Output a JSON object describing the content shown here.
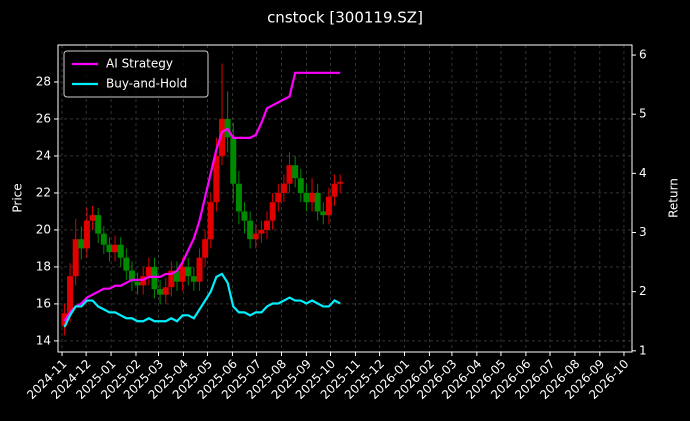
{
  "chart_data": {
    "type": "candlestick",
    "title": "cnstock [300119.SZ]",
    "ylabel": "Price",
    "y2label": "Return",
    "x": [
      "2024-11-04",
      "2024-11-11",
      "2024-11-18",
      "2024-11-25",
      "2024-12-02",
      "2024-12-09",
      "2024-12-16",
      "2024-12-23",
      "2024-12-30",
      "2025-01-06",
      "2025-01-13",
      "2025-01-20",
      "2025-01-27",
      "2025-02-03",
      "2025-02-10",
      "2025-02-17",
      "2025-02-24",
      "2025-03-03",
      "2025-03-10",
      "2025-03-17",
      "2025-03-24",
      "2025-03-31",
      "2025-04-07",
      "2025-04-14",
      "2025-04-21",
      "2025-04-28",
      "2025-05-05",
      "2025-05-12",
      "2025-05-19",
      "2025-05-26",
      "2025-06-02",
      "2025-06-09",
      "2025-06-16",
      "2025-06-23",
      "2025-06-30",
      "2025-07-07",
      "2025-07-14",
      "2025-07-21",
      "2025-07-28",
      "2025-08-04",
      "2025-08-11",
      "2025-08-18",
      "2025-08-25",
      "2025-09-01",
      "2025-09-08",
      "2025-09-15",
      "2025-09-22",
      "2025-09-29",
      "2025-10-06",
      "2025-10-13"
    ],
    "open": [
      14.8,
      15.5,
      17.5,
      19.5,
      19.0,
      20.5,
      20.8,
      19.8,
      19.2,
      18.8,
      19.2,
      18.5,
      17.8,
      17.2,
      17.0,
      17.5,
      18.0,
      16.8,
      16.5,
      16.9,
      17.8,
      17.2,
      18.0,
      17.5,
      17.2,
      18.5,
      19.5,
      21.5,
      24.0,
      26.0,
      25.0,
      22.5,
      21.0,
      20.5,
      19.5,
      19.8,
      20.0,
      20.5,
      21.5,
      22.0,
      22.5,
      23.5,
      22.8,
      22.0,
      21.5,
      22.0,
      21.0,
      20.8,
      21.8,
      22.5
    ],
    "high": [
      16.0,
      18.2,
      20.6,
      20.2,
      21.2,
      21.3,
      21.2,
      20.2,
      19.6,
      19.7,
      19.6,
      19.0,
      18.3,
      17.7,
      18.0,
      18.5,
      18.5,
      17.3,
      17.4,
      18.3,
      18.3,
      18.5,
      18.5,
      18.0,
      19.0,
      20.0,
      22.0,
      25.0,
      29.0,
      27.5,
      25.8,
      23.2,
      21.5,
      21.0,
      20.3,
      20.5,
      21.0,
      22.0,
      22.5,
      23.0,
      24.2,
      24.0,
      23.3,
      22.5,
      22.8,
      22.5,
      21.5,
      22.3,
      23.0,
      23.0
    ],
    "low": [
      14.3,
      15.0,
      17.0,
      18.4,
      18.5,
      20.0,
      19.3,
      18.7,
      18.3,
      18.3,
      18.0,
      17.3,
      16.7,
      16.5,
      16.5,
      17.0,
      16.3,
      16.0,
      16.0,
      16.4,
      16.7,
      16.7,
      17.0,
      16.7,
      16.7,
      18.0,
      19.0,
      21.0,
      23.5,
      24.2,
      21.5,
      20.3,
      19.8,
      19.0,
      19.0,
      19.3,
      19.5,
      20.0,
      21.0,
      21.5,
      22.0,
      22.3,
      21.5,
      21.0,
      21.0,
      20.5,
      20.3,
      20.3,
      21.3,
      22.0
    ],
    "close": [
      15.5,
      17.5,
      19.5,
      19.0,
      20.5,
      20.8,
      19.8,
      19.2,
      18.8,
      19.2,
      18.5,
      17.8,
      17.2,
      17.0,
      17.5,
      18.0,
      16.8,
      16.5,
      16.9,
      17.8,
      17.2,
      18.0,
      17.5,
      17.2,
      18.5,
      19.5,
      21.5,
      24.0,
      26.0,
      25.0,
      22.5,
      21.0,
      20.5,
      19.5,
      19.8,
      20.0,
      20.5,
      21.5,
      22.0,
      22.5,
      23.5,
      22.8,
      22.0,
      21.5,
      22.0,
      21.0,
      20.8,
      21.8,
      22.5,
      22.6
    ],
    "up_color": "#e00000",
    "down_color": "#008a00",
    "series": [
      {
        "name": "AI Strategy",
        "color": "#ff00ff",
        "axis": "y2",
        "values": [
          1.5,
          1.65,
          1.75,
          1.8,
          1.9,
          1.95,
          2.0,
          2.05,
          2.05,
          2.1,
          2.1,
          2.15,
          2.2,
          2.2,
          2.2,
          2.25,
          2.25,
          2.25,
          2.3,
          2.3,
          2.35,
          2.5,
          2.7,
          2.9,
          3.2,
          3.6,
          4.0,
          4.4,
          4.7,
          4.75,
          4.6,
          4.6,
          4.6,
          4.6,
          4.65,
          4.85,
          5.1,
          5.15,
          5.2,
          5.25,
          5.3,
          5.7,
          5.7,
          5.7,
          5.7,
          5.7,
          5.7,
          5.7,
          5.7,
          5.7
        ]
      },
      {
        "name": "Buy-and-Hold",
        "color": "#00f0ff",
        "axis": "y2",
        "values": [
          1.4,
          1.6,
          1.75,
          1.75,
          1.85,
          1.85,
          1.75,
          1.7,
          1.65,
          1.65,
          1.6,
          1.55,
          1.55,
          1.5,
          1.5,
          1.55,
          1.5,
          1.5,
          1.5,
          1.55,
          1.5,
          1.6,
          1.6,
          1.55,
          1.7,
          1.85,
          2.0,
          2.25,
          2.3,
          2.15,
          1.75,
          1.65,
          1.65,
          1.6,
          1.65,
          1.65,
          1.75,
          1.8,
          1.8,
          1.85,
          1.9,
          1.85,
          1.85,
          1.8,
          1.85,
          1.8,
          1.75,
          1.75,
          1.85,
          1.8
        ]
      }
    ],
    "xlim": [
      "2024-10-27",
      "2026-10-11"
    ],
    "xticks": [
      "2024-11",
      "2024-12",
      "2025-01",
      "2025-02",
      "2025-03",
      "2025-04",
      "2025-05",
      "2025-06",
      "2025-07",
      "2025-08",
      "2025-09",
      "2025-10",
      "2025-11",
      "2025-12",
      "2026-01",
      "2026-02",
      "2026-03",
      "2026-04",
      "2026-05",
      "2026-06",
      "2026-07",
      "2026-08",
      "2026-09",
      "2026-10"
    ],
    "ylim": [
      13.4,
      30
    ],
    "yticks": [
      14,
      16,
      18,
      20,
      22,
      24,
      26,
      28
    ],
    "y2lim": [
      0.98,
      6.17
    ],
    "y2ticks": [
      1,
      2,
      3,
      4,
      5,
      6
    ],
    "grid": true,
    "legend": "upper left"
  }
}
